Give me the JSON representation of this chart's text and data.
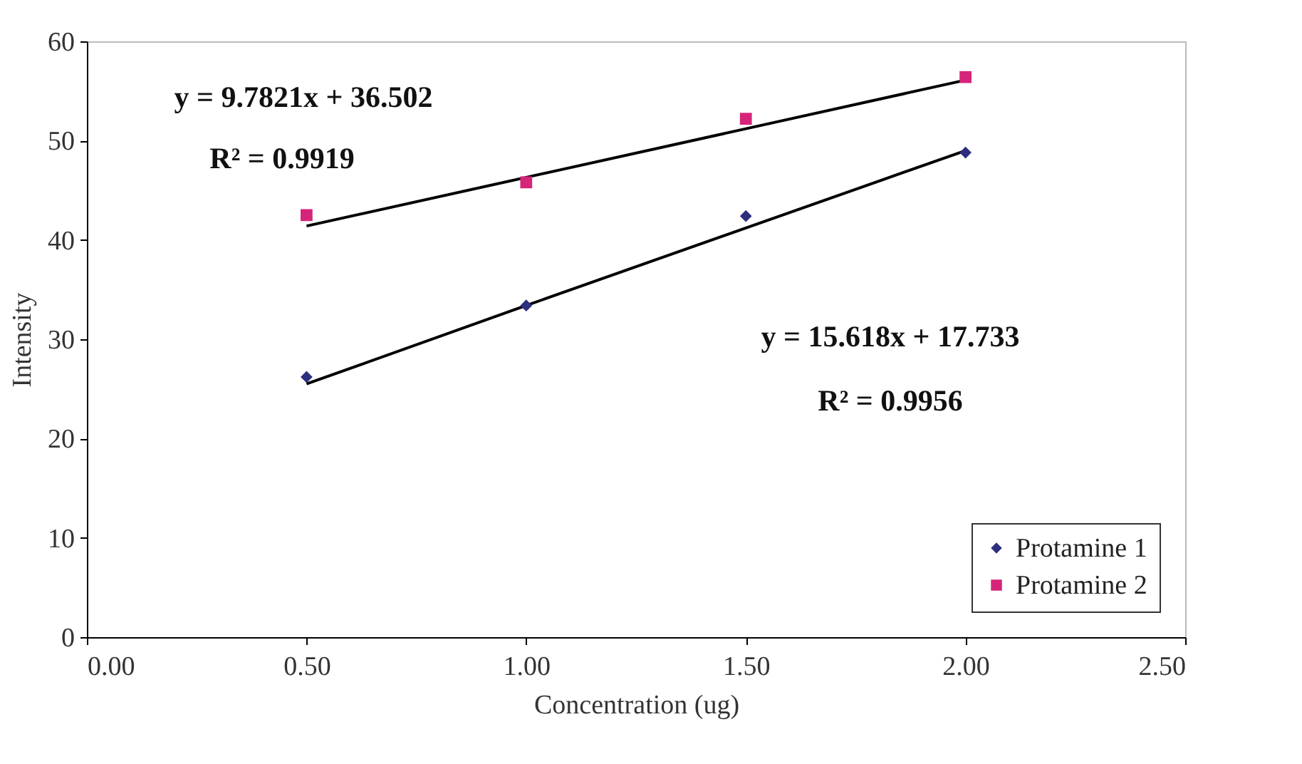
{
  "chart_data": {
    "type": "scatter",
    "xlabel": "Concentration (ug)",
    "ylabel": "Intensity",
    "x": [
      0.5,
      1.0,
      1.5,
      2.0
    ],
    "series": [
      {
        "name": "Protamine 1",
        "color": "#2e2e7e",
        "marker": "diamond",
        "values": [
          26.2,
          33.4,
          42.4,
          48.8
        ]
      },
      {
        "name": "Protamine 2",
        "color": "#d6247a",
        "marker": "square",
        "values": [
          42.5,
          45.8,
          52.2,
          56.4
        ]
      },
      {
        "type": "line",
        "color": "#000000",
        "values": [
          25.5,
          33.4,
          41.2,
          49.0
        ]
      },
      {
        "type": "line",
        "color": "#000000",
        "values": [
          41.4,
          46.3,
          51.2,
          56.1
        ]
      }
    ],
    "xlim": [
      0,
      2.5
    ],
    "ylim": [
      0,
      60
    ],
    "xticks": [
      {
        "value": 0,
        "label": "0.00"
      },
      {
        "value": 0.5,
        "label": "0.50"
      },
      {
        "value": 1,
        "label": "1.00"
      },
      {
        "value": 1.5,
        "label": "1.50"
      },
      {
        "value": 2,
        "label": "2.00"
      },
      {
        "value": 2.5,
        "label": "2.50"
      }
    ],
    "yticks": [
      0,
      10,
      20,
      30,
      40,
      50,
      60
    ],
    "grid": false,
    "legend": "bottom right",
    "annotations": [
      "y = 9.7821x + 36.502",
      "R² = 0.9919",
      "y = 15.618x + 17.733",
      "R² = 0.9956"
    ]
  }
}
